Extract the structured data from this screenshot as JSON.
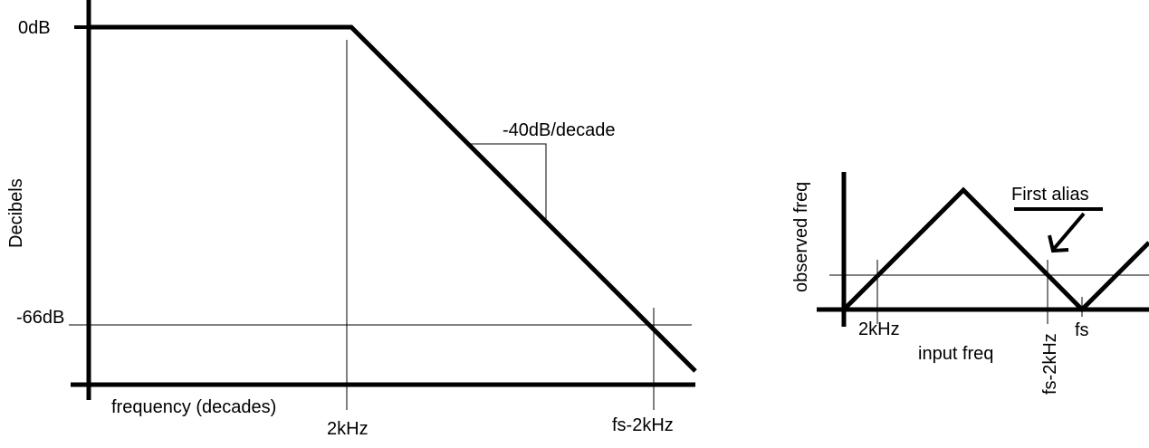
{
  "left_plot": {
    "ylabel": "Decibels",
    "xlabel": "frequency (decades)",
    "tick_0db": "0dB",
    "tick_minus66db": "-66dB",
    "tick_2khz": "2kHz",
    "tick_fs_minus_2khz": "fs-2kHz",
    "slope_label": "-40dB/decade"
  },
  "right_plot": {
    "ylabel": "observed freq",
    "xlabel": "input freq",
    "tick_2khz": "2kHz",
    "tick_fs_minus_2khz": "fs-2kHz",
    "tick_fs": "fs",
    "annotation": "First alias"
  },
  "colors": {
    "ink": "#000000",
    "background": "#ffffff"
  }
}
